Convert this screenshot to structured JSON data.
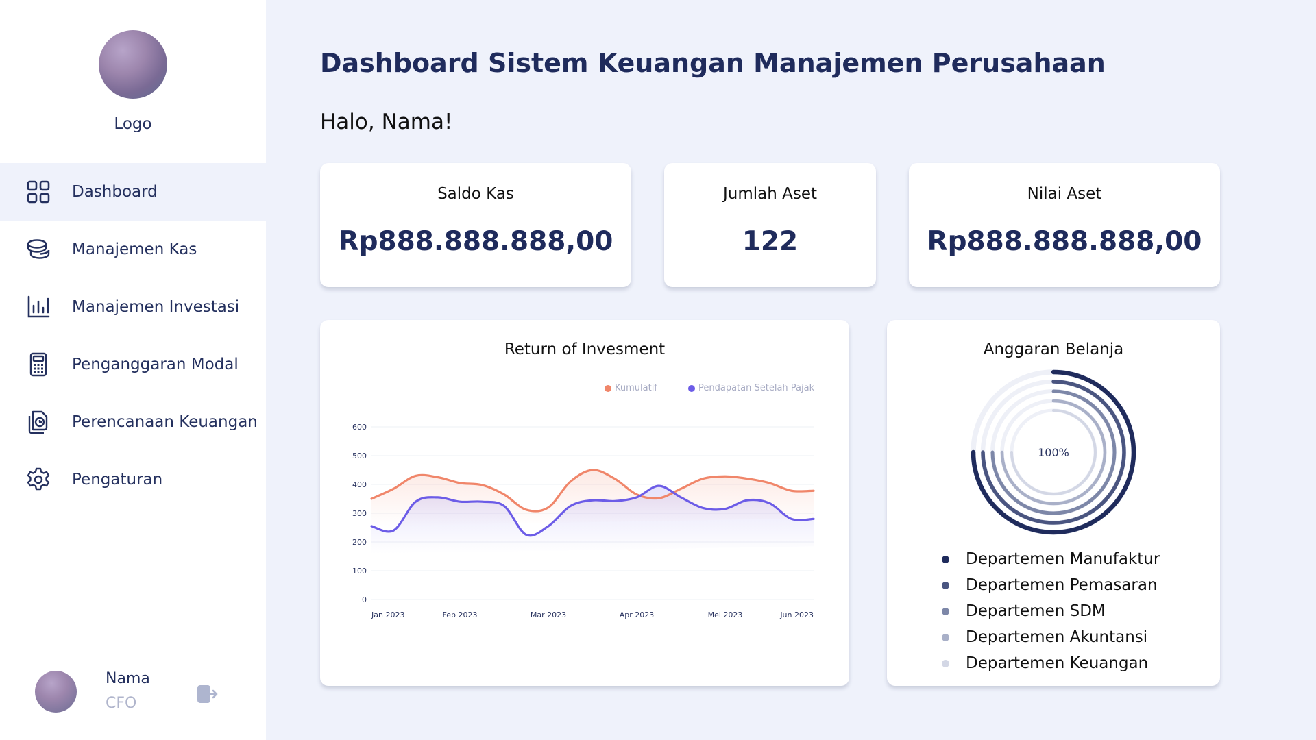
{
  "app": {
    "logo_text": "Logo",
    "page_title": "Dashboard Sistem Keuangan Manajemen Perusahaan",
    "greeting": "Halo, Nama!"
  },
  "sidebar": {
    "items": [
      {
        "label": "Dashboard",
        "icon": "grid-icon",
        "active": true
      },
      {
        "label": "Manajemen Kas",
        "icon": "coins-icon",
        "active": false
      },
      {
        "label": "Manajemen Investasi",
        "icon": "bar-chart-icon",
        "active": false
      },
      {
        "label": "Penganggaran Modal",
        "icon": "calculator-icon",
        "active": false
      },
      {
        "label": "Perencanaan Keuangan",
        "icon": "document-clock-icon",
        "active": false
      },
      {
        "label": "Pengaturan",
        "icon": "gear-icon",
        "active": false
      }
    ],
    "user": {
      "name": "Nama",
      "role": "CFO",
      "logout_icon": "logout-icon"
    }
  },
  "stats": [
    {
      "label": "Saldo Kas",
      "value": "Rp888.888.888,00"
    },
    {
      "label": "Jumlah Aset",
      "value": "122"
    },
    {
      "label": "Nilai Aset",
      "value": "Rp888.888.888,00"
    }
  ],
  "roi": {
    "title": "Return of Invesment"
  },
  "budget": {
    "title": "Anggaran Belanja",
    "center_label": "100%"
  },
  "colors": {
    "primary": "#1f2b5c",
    "kumulatif": "#f0866a",
    "pendapatan": "#6c5ce7"
  },
  "chart_data": [
    {
      "type": "line",
      "title": "Return of Invesment",
      "categories": [
        "Jan 2023",
        "Feb 2023",
        "Mar 2023",
        "Apr 2023",
        "Mei 2023",
        "Jun 2023"
      ],
      "yticks": [
        0,
        100,
        200,
        300,
        400,
        500,
        600
      ],
      "ylim": [
        0,
        600
      ],
      "legend_position": "top-right",
      "series": [
        {
          "name": "Kumulatif",
          "color": "#f0866a",
          "x": [
            0,
            0.25,
            0.5,
            0.75,
            1.0,
            1.25,
            1.5,
            1.75,
            2.0,
            2.25,
            2.5,
            2.75,
            3.0,
            3.25,
            3.5,
            3.75,
            4.0,
            4.25,
            4.5,
            4.75,
            5.0
          ],
          "values": [
            350,
            385,
            430,
            425,
            405,
            398,
            365,
            312,
            320,
            410,
            450,
            420,
            365,
            352,
            385,
            420,
            428,
            420,
            405,
            378,
            378
          ]
        },
        {
          "name": "Pendapatan Setelah Pajak",
          "color": "#6c5ce7",
          "x": [
            0,
            0.25,
            0.5,
            0.75,
            1.0,
            1.25,
            1.5,
            1.75,
            2.0,
            2.25,
            2.5,
            2.75,
            3.0,
            3.25,
            3.5,
            3.75,
            4.0,
            4.25,
            4.5,
            4.75,
            5.0
          ],
          "values": [
            255,
            240,
            340,
            355,
            340,
            340,
            325,
            225,
            255,
            325,
            345,
            342,
            355,
            395,
            355,
            318,
            315,
            345,
            335,
            280,
            280
          ]
        }
      ]
    },
    {
      "type": "pie",
      "title": "Anggaran Belanja",
      "center_label": "100%",
      "categories": [
        "Departemen Manufaktur",
        "Departemen Pemasaran",
        "Departemen SDM",
        "Departemen Akuntansi",
        "Departemen Keuangan"
      ],
      "values": [
        75,
        75,
        75,
        75,
        75
      ],
      "colors": [
        "#1f2b5c",
        "#4a5580",
        "#7d87a8",
        "#a9b0c8",
        "#d3d7e5"
      ]
    }
  ]
}
